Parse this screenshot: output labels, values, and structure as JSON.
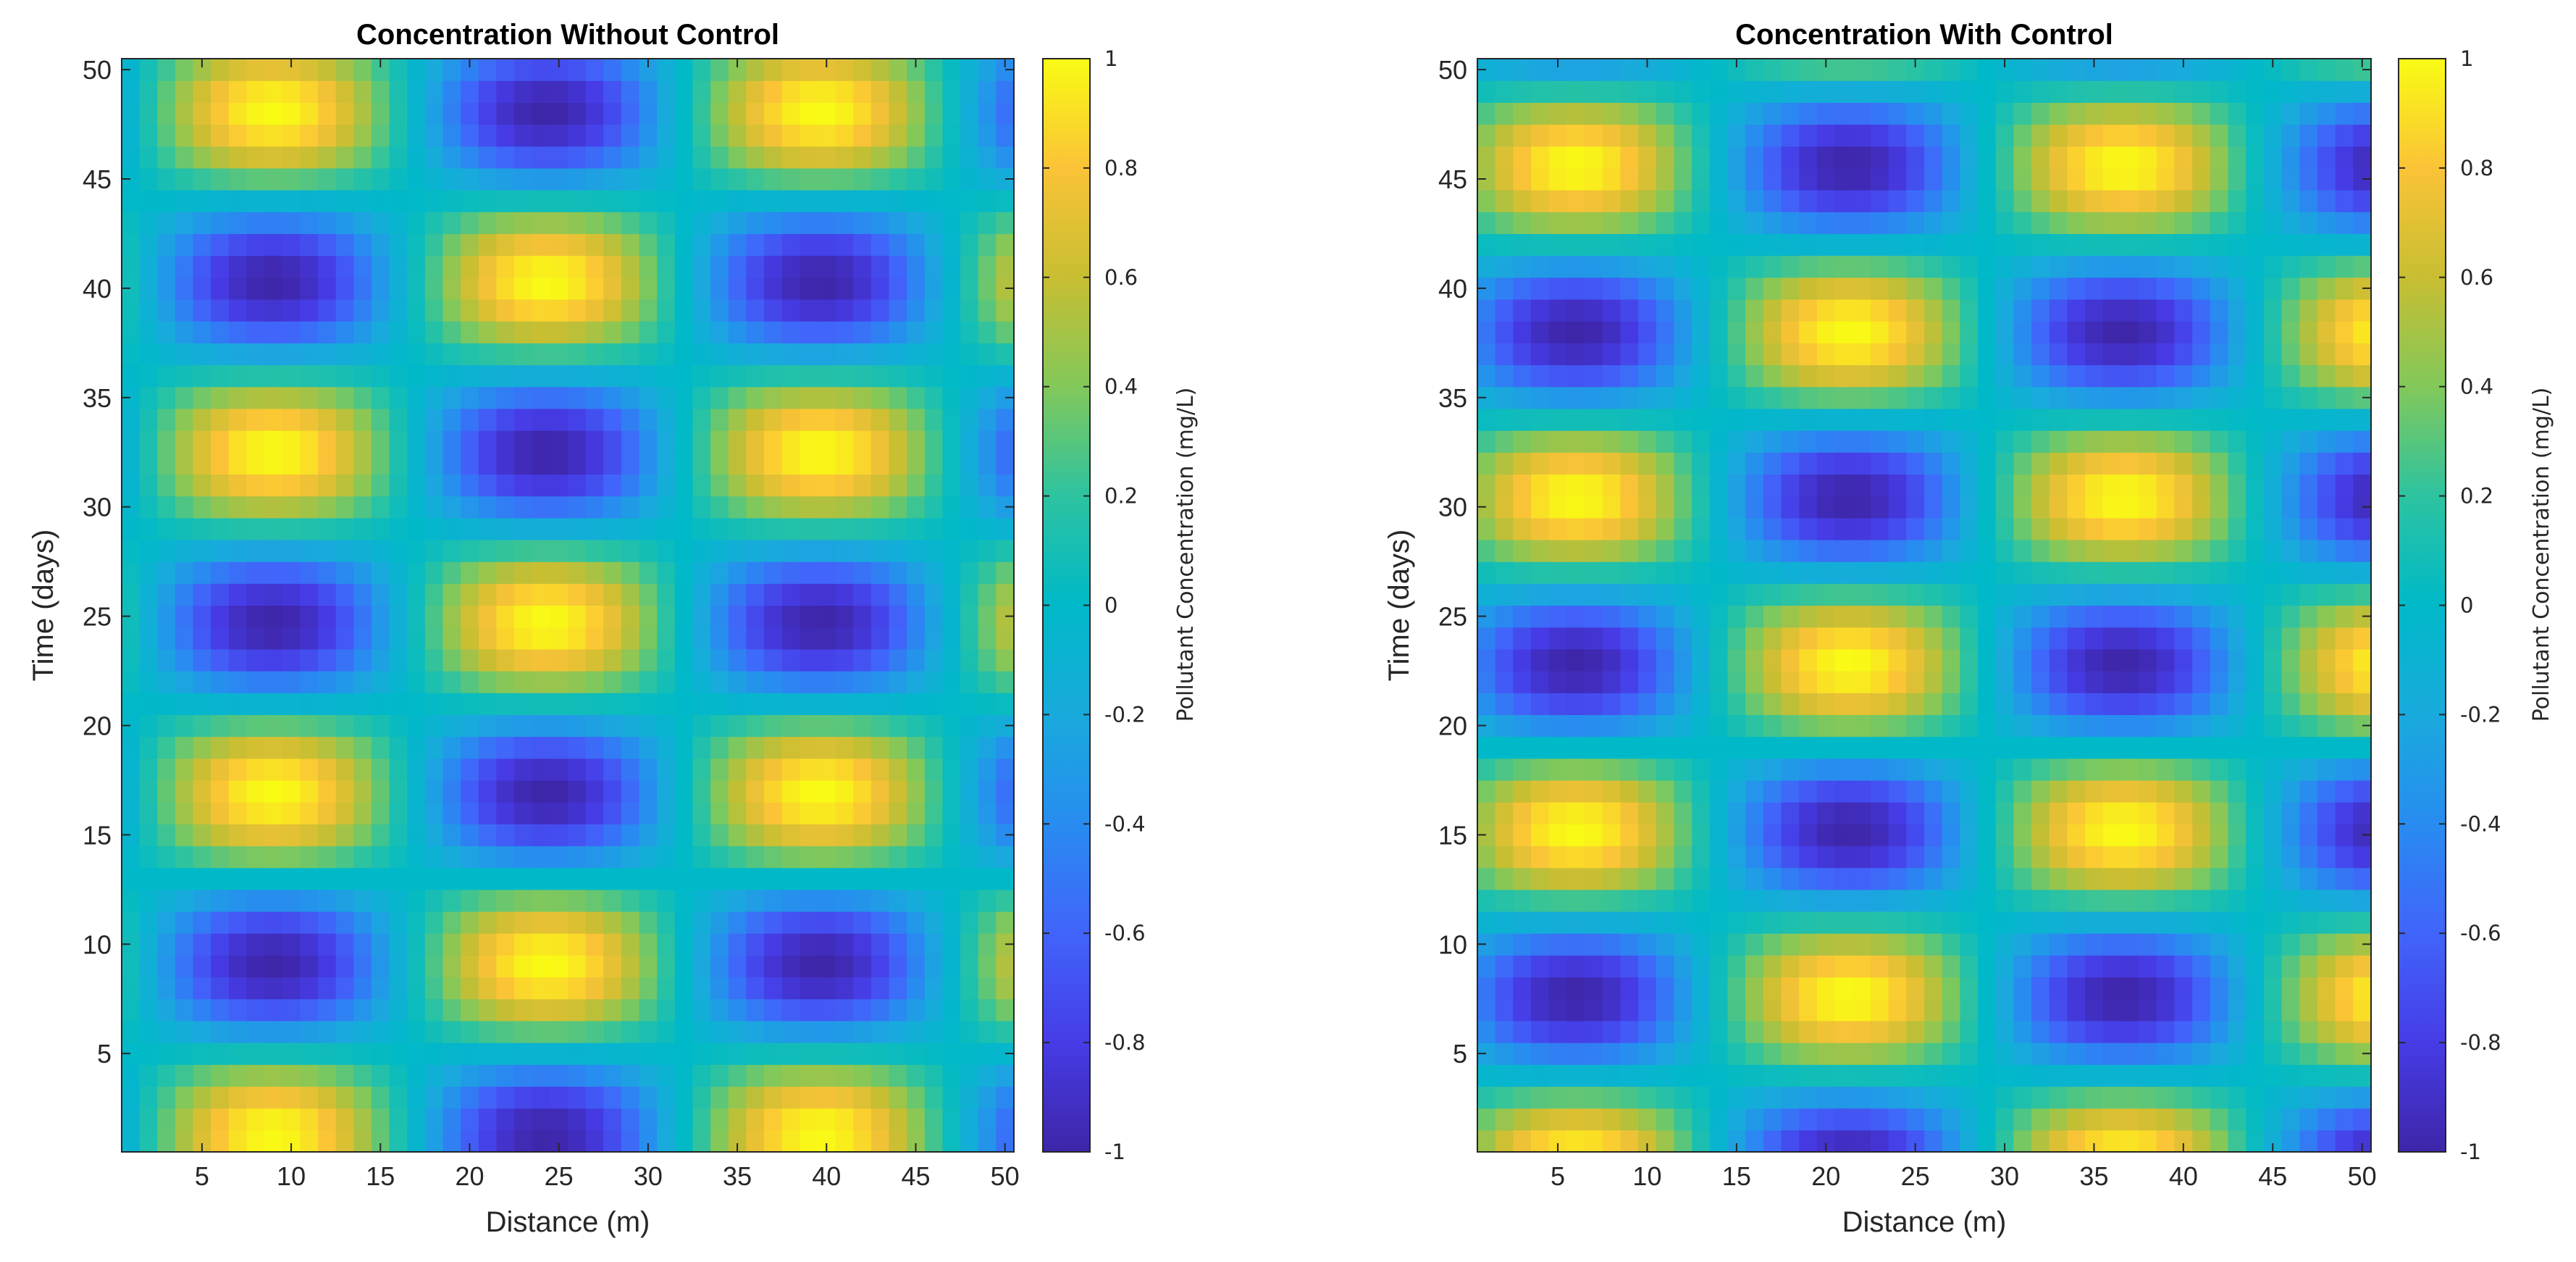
{
  "chart_data": [
    {
      "type": "heatmap",
      "title": "Concentration Without Control",
      "xlabel": "Distance (m)",
      "ylabel": "Time (days)",
      "x_range": [
        1,
        50
      ],
      "y_range": [
        1,
        50
      ],
      "xlim": [
        0.5,
        50.5
      ],
      "ylim": [
        0.5,
        50.5
      ],
      "x_ticks": [
        5,
        10,
        15,
        20,
        25,
        30,
        35,
        40,
        45,
        50
      ],
      "y_ticks": [
        5,
        10,
        15,
        20,
        25,
        30,
        35,
        40,
        45,
        50
      ],
      "pattern": "sin",
      "x_period": 30.6,
      "x_phase_peak": 9,
      "t_period": 15.6,
      "t_phase_peak": 1.3,
      "colorbar": {
        "label": "Pollutant Concentration (mg/L)",
        "range": [
          -1,
          1
        ],
        "ticks": [
          "1",
          "0.8",
          "0.6",
          "0.4",
          "0.2",
          "0",
          "-0.2",
          "-0.4",
          "-0.6",
          "-0.8",
          "-1"
        ]
      }
    },
    {
      "type": "heatmap",
      "title": "Concentration With Control",
      "xlabel": "Distance (m)",
      "ylabel": "Time (days)",
      "x_range": [
        1,
        50
      ],
      "y_range": [
        1,
        50
      ],
      "xlim": [
        0.5,
        50.5
      ],
      "ylim": [
        0.5,
        50.5
      ],
      "x_ticks": [
        5,
        10,
        15,
        20,
        25,
        30,
        35,
        40,
        45,
        50
      ],
      "y_ticks": [
        5,
        10,
        15,
        20,
        25,
        30,
        35,
        40,
        45,
        50
      ],
      "pattern": "sin",
      "x_period": 30.6,
      "x_phase_peak": 6,
      "t_period": 15.2,
      "t_phase_peak": 0,
      "colorbar": {
        "label": "Pollutant Concentration (mg/L)",
        "range": [
          -1,
          1
        ],
        "ticks": [
          "1",
          "0.8",
          "0.6",
          "0.4",
          "0.2",
          "0",
          "-0.2",
          "-0.4",
          "-0.6",
          "-0.8",
          "-1"
        ]
      }
    }
  ]
}
